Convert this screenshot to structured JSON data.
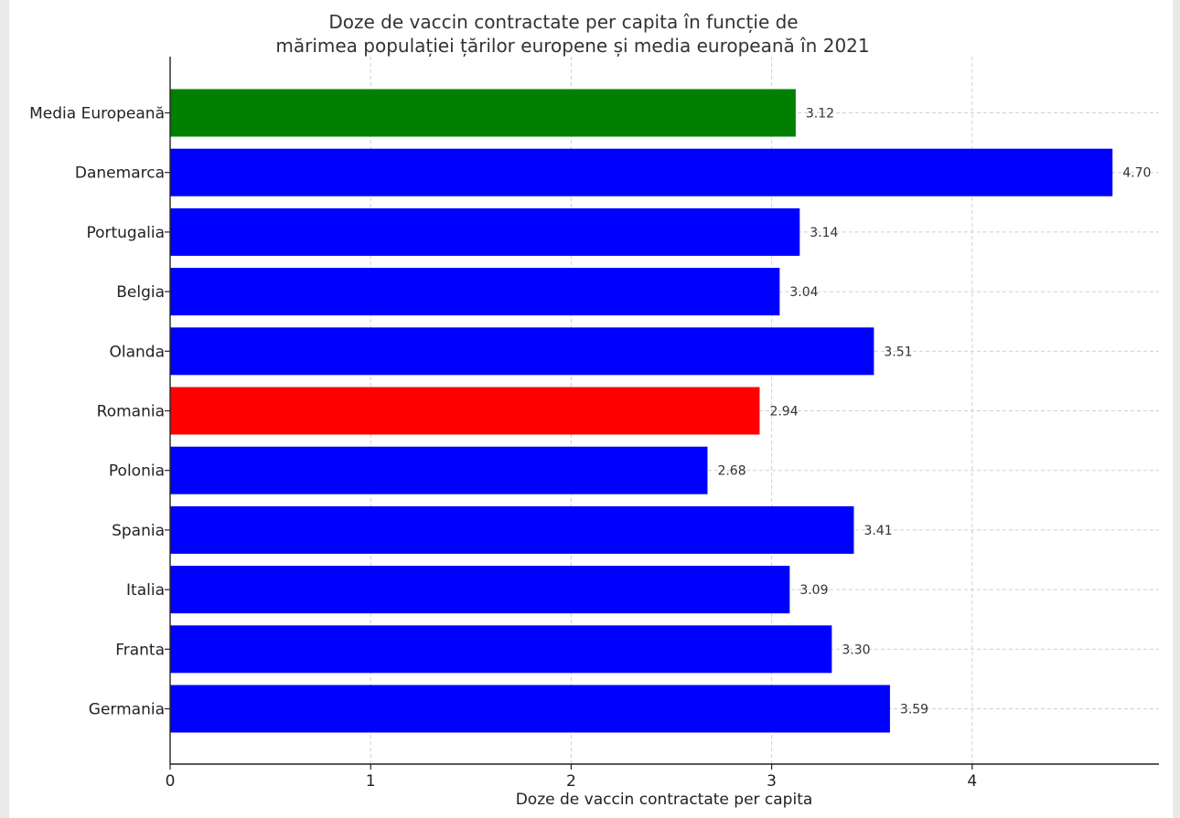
{
  "chart_data": {
    "type": "bar",
    "orientation": "horizontal",
    "title_lines": [
      "Doze de vaccin contractate per capita în funcție de",
      "mărimea populației țărilor europene și media europeană în 2021"
    ],
    "xlabel": "Doze de vaccin contractate per capita",
    "ylabel": "",
    "xlim": [
      0,
      4.93
    ],
    "xticks": [
      0,
      1,
      2,
      3,
      4
    ],
    "grid": true,
    "categories": [
      "Media Europeană",
      "Danemarca",
      "Portugalia",
      "Belgia",
      "Olanda",
      "Romania",
      "Polonia",
      "Spania",
      "Italia",
      "Franta",
      "Germania"
    ],
    "values": [
      3.12,
      4.7,
      3.14,
      3.04,
      3.51,
      2.94,
      2.68,
      3.41,
      3.09,
      3.3,
      3.59
    ],
    "value_labels": [
      "3.12",
      "4.70",
      "3.14",
      "3.04",
      "3.51",
      "2.94",
      "2.68",
      "3.41",
      "3.09",
      "3.30",
      "3.59"
    ],
    "colors": [
      "#008000",
      "#0000ff",
      "#0000ff",
      "#0000ff",
      "#0000ff",
      "#ff0000",
      "#0000ff",
      "#0000ff",
      "#0000ff",
      "#0000ff",
      "#0000ff"
    ]
  }
}
